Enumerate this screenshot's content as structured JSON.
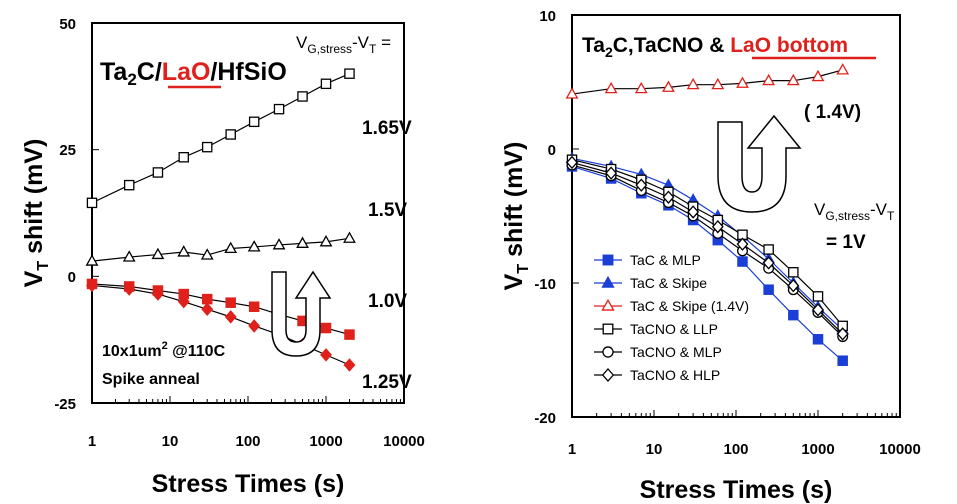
{
  "chart_data": [
    {
      "type": "line",
      "xscale": "log",
      "xlim": [
        1,
        10000
      ],
      "ylim": [
        -25,
        50
      ],
      "xlabel": "Stress Times (s)",
      "ylabel_main": "V",
      "ylabel_sub": "T",
      "ylabel_rest": " shift (mV)",
      "xticks": [
        "1",
        "10",
        "100",
        "1000",
        "10000"
      ],
      "yticks": [
        "-25",
        "0",
        "25",
        "50"
      ],
      "title_parts": [
        "Ta",
        "2",
        "C/",
        "LaO",
        "/HfSiO"
      ],
      "title_accent_color": "#e0201b",
      "stress_label": "V",
      "stress_sub": "G,stress",
      "stress_rest": "-V",
      "stress_sub2": "T",
      "stress_eq": " =",
      "voltage_labels": [
        "1.65V",
        "1.5V",
        "1.0V",
        "1.25V"
      ],
      "note_line1": "10x1um",
      "note_sup": "2",
      "note_rest": " @110C",
      "note_line2": "Spike anneal",
      "arrow": "up-turn-arrow",
      "series": [
        {
          "voltage": "1.65V",
          "marker": "open-square",
          "color": "#000000",
          "x": [
            1,
            3,
            7,
            15,
            30,
            60,
            120,
            250,
            500,
            1000,
            2000
          ],
          "y": [
            14.5,
            18,
            20.5,
            23.5,
            25.5,
            28,
            30.5,
            33,
            35.5,
            38,
            40
          ]
        },
        {
          "voltage": "1.5V",
          "marker": "open-triangle",
          "color": "#000000",
          "x": [
            1,
            3,
            7,
            15,
            30,
            60,
            120,
            250,
            500,
            1000,
            2000
          ],
          "y": [
            3,
            3.8,
            4.3,
            4.8,
            4.2,
            5.5,
            5.8,
            6.2,
            6.5,
            6.8,
            7.5
          ]
        },
        {
          "voltage": "1.0V",
          "marker": "filled-square",
          "color": "#e0201b",
          "x": [
            1,
            3,
            7,
            15,
            30,
            60,
            120,
            250,
            500,
            1000,
            2000
          ],
          "y": [
            -1.5,
            -2,
            -2.8,
            -3.5,
            -4.5,
            -5.2,
            -6,
            -7.5,
            -8.8,
            -10.2,
            -11.5
          ]
        },
        {
          "voltage": "1.25V",
          "marker": "filled-diamond",
          "color": "#e0201b",
          "x": [
            1,
            3,
            7,
            15,
            30,
            60,
            120,
            250,
            500,
            1000,
            2000
          ],
          "y": [
            -1.8,
            -2.5,
            -3.5,
            -5,
            -6.5,
            -8,
            -9.8,
            -11.5,
            -13.5,
            -15.5,
            -17.5
          ]
        }
      ]
    },
    {
      "type": "line",
      "xscale": "log",
      "xlim": [
        1,
        10000
      ],
      "ylim": [
        -20,
        10
      ],
      "xlabel": "Stress Times (s)",
      "ylabel_main": "V",
      "ylabel_sub": "T",
      "ylabel_rest": " shift (mV)",
      "xticks": [
        "1",
        "10",
        "100",
        "1000",
        "10000"
      ],
      "yticks": [
        "-20",
        "-10",
        "0",
        "10"
      ],
      "title_parts": [
        "Ta",
        "2",
        "C,TaCNO & ",
        "LaO bottom"
      ],
      "title_accent_color": "#e0201b",
      "stress_label": "V",
      "stress_sub": "G,stress",
      "stress_rest": "-V",
      "stress_sub2": "T",
      "voltage_main": "= 1V",
      "voltage_alt": "( 1.4V)",
      "arrow": "up-turn-arrow",
      "legend_position": "bottom-left",
      "series": [
        {
          "name": "TaC & MLP",
          "marker": "filled-square",
          "color": "#1a3fd6",
          "x": [
            1,
            3,
            7,
            15,
            30,
            60,
            120,
            250,
            500,
            1000,
            2000
          ],
          "y": [
            -1.3,
            -2.2,
            -3.3,
            -4.2,
            -5.3,
            -6.8,
            -8.4,
            -10.5,
            -12.4,
            -14.2,
            -15.8
          ]
        },
        {
          "name": "TaC & Skipe",
          "marker": "filled-triangle",
          "color": "#1a3fd6",
          "x": [
            1,
            3,
            7,
            15,
            30,
            60,
            120,
            250,
            500,
            1000,
            2000
          ],
          "y": [
            -0.7,
            -1.3,
            -1.9,
            -2.7,
            -3.8,
            -5,
            -6.5,
            -8.2,
            -10,
            -11.8,
            -13.5
          ]
        },
        {
          "name": "TaC & Skipe (1.4V)",
          "marker": "open-triangle",
          "color": "#e0201b",
          "x": [
            1,
            3,
            7,
            15,
            30,
            60,
            120,
            250,
            500,
            1000,
            2000
          ],
          "y": [
            4.1,
            4.5,
            4.5,
            4.6,
            4.8,
            4.8,
            4.9,
            5.1,
            5.1,
            5.4,
            5.9
          ]
        },
        {
          "name": "TaCNO & LLP",
          "marker": "open-square",
          "color": "#000000",
          "x": [
            1,
            3,
            7,
            15,
            30,
            60,
            120,
            250,
            500,
            1000,
            2000
          ],
          "y": [
            -0.8,
            -1.5,
            -2.3,
            -3.2,
            -4.3,
            -5.3,
            -6.4,
            -7.5,
            -9.2,
            -11,
            -13.2
          ]
        },
        {
          "name": "TaCNO & MLP",
          "marker": "open-circle",
          "color": "#000000",
          "x": [
            1,
            3,
            7,
            15,
            30,
            60,
            120,
            250,
            500,
            1000,
            2000
          ],
          "y": [
            -1.2,
            -2,
            -3.1,
            -4,
            -5,
            -6.3,
            -7.6,
            -8.9,
            -10.5,
            -12.2,
            -14
          ]
        },
        {
          "name": "TaCNO & HLP",
          "marker": "open-diamond",
          "color": "#000000",
          "x": [
            1,
            3,
            7,
            15,
            30,
            60,
            120,
            250,
            500,
            1000,
            2000
          ],
          "y": [
            -1,
            -1.8,
            -2.7,
            -3.6,
            -4.7,
            -5.8,
            -7.1,
            -8.5,
            -10.2,
            -12,
            -13.8
          ]
        }
      ]
    }
  ]
}
